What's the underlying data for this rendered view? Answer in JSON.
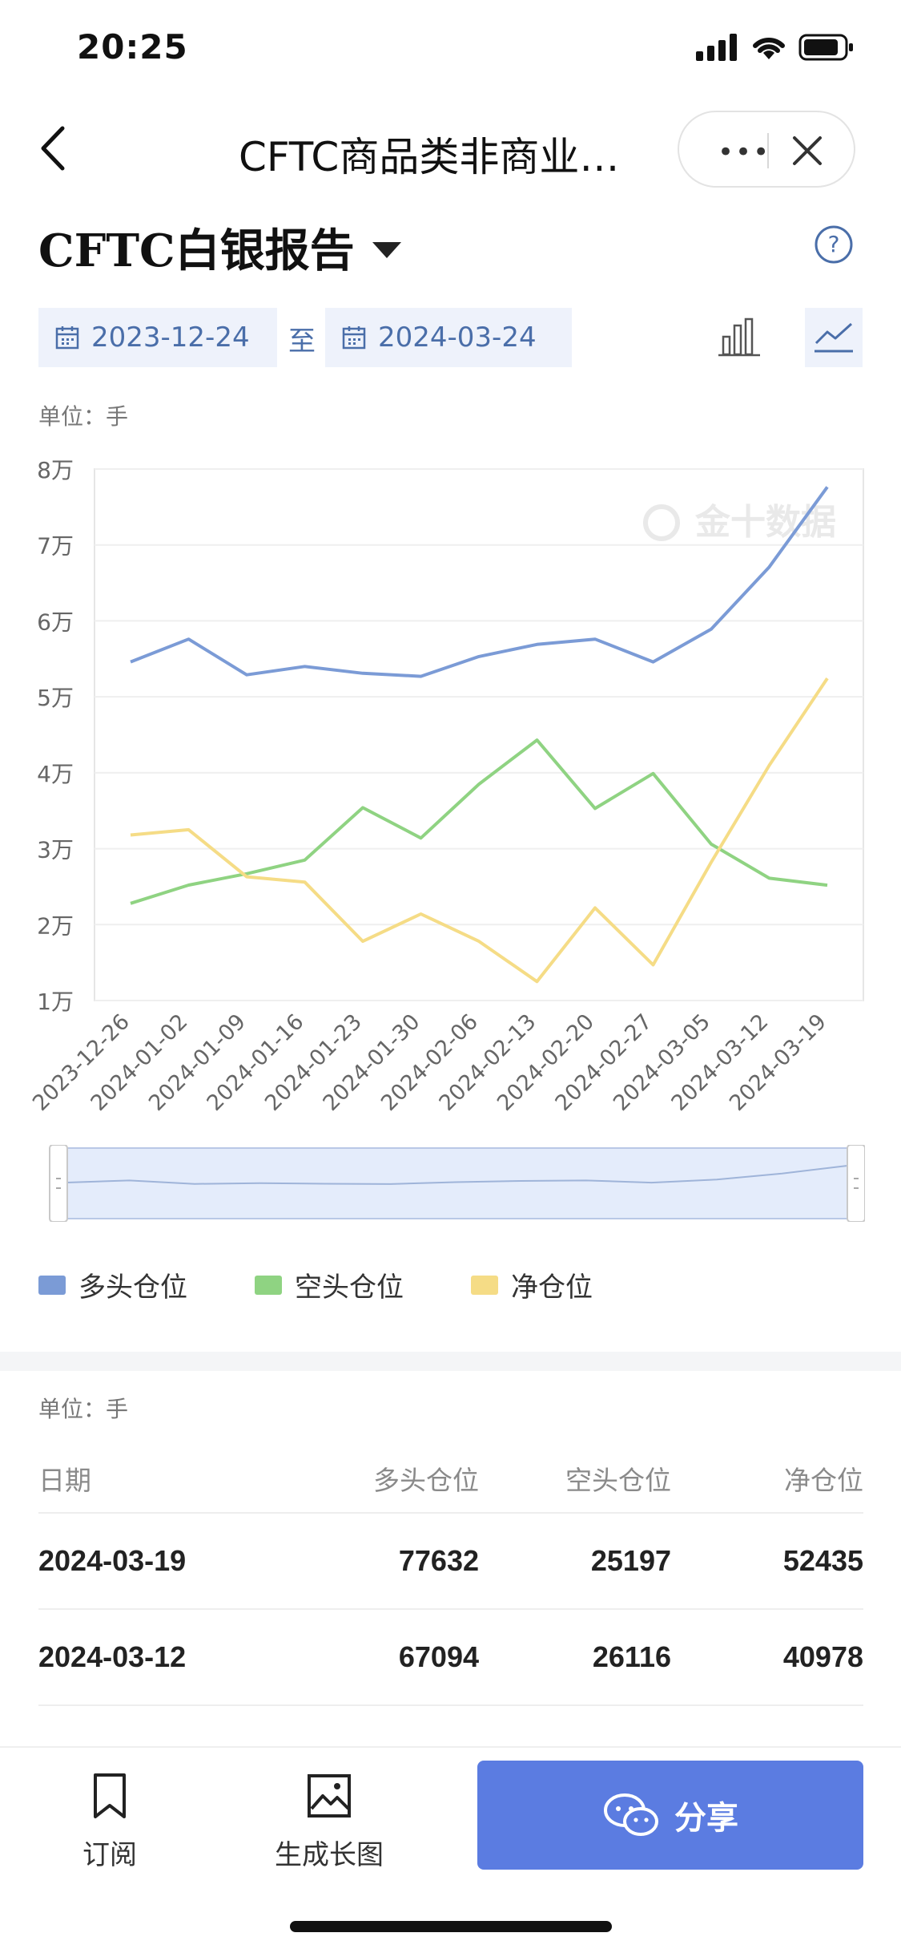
{
  "status": {
    "time": "20:25"
  },
  "nav": {
    "title": "CFTC商品类非商业…"
  },
  "header": {
    "title": "CFTC白银报告"
  },
  "date_range": {
    "start": "2023-12-24",
    "sep": "至",
    "end": "2024-03-24"
  },
  "unit_label": "单位：手",
  "watermark": "金十数据",
  "colors": {
    "long": "#7b9bd6",
    "short": "#8fd382",
    "net": "#f5dc86",
    "accent": "#5b7ce1"
  },
  "chart_data": {
    "type": "line",
    "categories": [
      "2023-12-26",
      "2024-01-02",
      "2024-01-09",
      "2024-01-16",
      "2024-01-23",
      "2024-01-30",
      "2024-02-06",
      "2024-02-13",
      "2024-02-20",
      "2024-02-27",
      "2024-03-05",
      "2024-03-12",
      "2024-03-19"
    ],
    "series": [
      {
        "name": "多头仓位",
        "color": "#7b9bd6",
        "values": [
          54600,
          57600,
          52900,
          54000,
          53100,
          52700,
          55300,
          56900,
          57600,
          54600,
          58900,
          67094,
          77632
        ]
      },
      {
        "name": "空头仓位",
        "color": "#8fd382",
        "values": [
          22800,
          25200,
          26700,
          28500,
          35400,
          31400,
          38500,
          44300,
          35300,
          39900,
          30600,
          26116,
          25197
        ]
      },
      {
        "name": "净仓位",
        "color": "#f5dc86",
        "values": [
          31800,
          32500,
          26300,
          25600,
          17800,
          21400,
          17800,
          12500,
          22200,
          14700,
          28215,
          40978,
          52435
        ]
      }
    ],
    "yticks": [
      "1万",
      "2万",
      "3万",
      "4万",
      "5万",
      "6万",
      "7万",
      "8万"
    ],
    "ylim": [
      10000,
      80000
    ],
    "unit": "单位：手"
  },
  "table": {
    "unit": "单位：手",
    "headers": [
      "日期",
      "多头仓位",
      "空头仓位",
      "净仓位"
    ],
    "rows": [
      [
        "2024-03-19",
        "77632",
        "25197",
        "52435"
      ],
      [
        "2024-03-12",
        "67094",
        "26116",
        "40978"
      ]
    ]
  },
  "bottom": {
    "subscribe": "订阅",
    "generate": "生成长图",
    "share": "分享"
  }
}
